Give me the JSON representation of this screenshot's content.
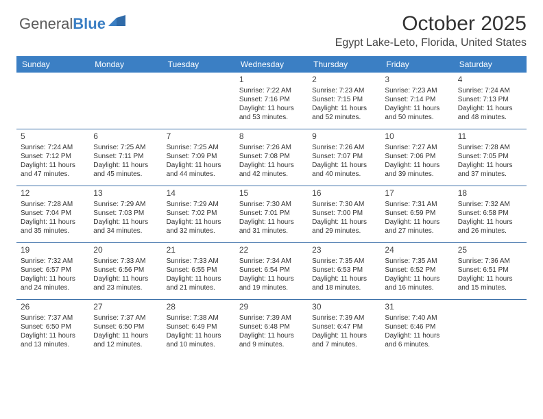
{
  "brand": {
    "name1": "General",
    "name2": "Blue"
  },
  "header": {
    "title": "October 2025",
    "location": "Egypt Lake-Leto, Florida, United States"
  },
  "style": {
    "header_bg": "#3b7fc4",
    "header_fg": "#ffffff",
    "row_border": "#3b6fa8",
    "text_color": "#333333",
    "daynum_color": "#444444",
    "body_font_size": 10,
    "daynum_font_size": 12,
    "title_font_size": 30,
    "location_font_size": 16
  },
  "day_labels": [
    "Sunday",
    "Monday",
    "Tuesday",
    "Wednesday",
    "Thursday",
    "Friday",
    "Saturday"
  ],
  "weeks": [
    [
      {
        "blank": true
      },
      {
        "blank": true
      },
      {
        "blank": true
      },
      {
        "day": "1",
        "sunrise": "7:22 AM",
        "sunset": "7:16 PM",
        "dl1": "11 hours",
        "dl2": "and 53 minutes."
      },
      {
        "day": "2",
        "sunrise": "7:23 AM",
        "sunset": "7:15 PM",
        "dl1": "11 hours",
        "dl2": "and 52 minutes."
      },
      {
        "day": "3",
        "sunrise": "7:23 AM",
        "sunset": "7:14 PM",
        "dl1": "11 hours",
        "dl2": "and 50 minutes."
      },
      {
        "day": "4",
        "sunrise": "7:24 AM",
        "sunset": "7:13 PM",
        "dl1": "11 hours",
        "dl2": "and 48 minutes."
      }
    ],
    [
      {
        "day": "5",
        "sunrise": "7:24 AM",
        "sunset": "7:12 PM",
        "dl1": "11 hours",
        "dl2": "and 47 minutes."
      },
      {
        "day": "6",
        "sunrise": "7:25 AM",
        "sunset": "7:11 PM",
        "dl1": "11 hours",
        "dl2": "and 45 minutes."
      },
      {
        "day": "7",
        "sunrise": "7:25 AM",
        "sunset": "7:09 PM",
        "dl1": "11 hours",
        "dl2": "and 44 minutes."
      },
      {
        "day": "8",
        "sunrise": "7:26 AM",
        "sunset": "7:08 PM",
        "dl1": "11 hours",
        "dl2": "and 42 minutes."
      },
      {
        "day": "9",
        "sunrise": "7:26 AM",
        "sunset": "7:07 PM",
        "dl1": "11 hours",
        "dl2": "and 40 minutes."
      },
      {
        "day": "10",
        "sunrise": "7:27 AM",
        "sunset": "7:06 PM",
        "dl1": "11 hours",
        "dl2": "and 39 minutes."
      },
      {
        "day": "11",
        "sunrise": "7:28 AM",
        "sunset": "7:05 PM",
        "dl1": "11 hours",
        "dl2": "and 37 minutes."
      }
    ],
    [
      {
        "day": "12",
        "sunrise": "7:28 AM",
        "sunset": "7:04 PM",
        "dl1": "11 hours",
        "dl2": "and 35 minutes."
      },
      {
        "day": "13",
        "sunrise": "7:29 AM",
        "sunset": "7:03 PM",
        "dl1": "11 hours",
        "dl2": "and 34 minutes."
      },
      {
        "day": "14",
        "sunrise": "7:29 AM",
        "sunset": "7:02 PM",
        "dl1": "11 hours",
        "dl2": "and 32 minutes."
      },
      {
        "day": "15",
        "sunrise": "7:30 AM",
        "sunset": "7:01 PM",
        "dl1": "11 hours",
        "dl2": "and 31 minutes."
      },
      {
        "day": "16",
        "sunrise": "7:30 AM",
        "sunset": "7:00 PM",
        "dl1": "11 hours",
        "dl2": "and 29 minutes."
      },
      {
        "day": "17",
        "sunrise": "7:31 AM",
        "sunset": "6:59 PM",
        "dl1": "11 hours",
        "dl2": "and 27 minutes."
      },
      {
        "day": "18",
        "sunrise": "7:32 AM",
        "sunset": "6:58 PM",
        "dl1": "11 hours",
        "dl2": "and 26 minutes."
      }
    ],
    [
      {
        "day": "19",
        "sunrise": "7:32 AM",
        "sunset": "6:57 PM",
        "dl1": "11 hours",
        "dl2": "and 24 minutes."
      },
      {
        "day": "20",
        "sunrise": "7:33 AM",
        "sunset": "6:56 PM",
        "dl1": "11 hours",
        "dl2": "and 23 minutes."
      },
      {
        "day": "21",
        "sunrise": "7:33 AM",
        "sunset": "6:55 PM",
        "dl1": "11 hours",
        "dl2": "and 21 minutes."
      },
      {
        "day": "22",
        "sunrise": "7:34 AM",
        "sunset": "6:54 PM",
        "dl1": "11 hours",
        "dl2": "and 19 minutes."
      },
      {
        "day": "23",
        "sunrise": "7:35 AM",
        "sunset": "6:53 PM",
        "dl1": "11 hours",
        "dl2": "and 18 minutes."
      },
      {
        "day": "24",
        "sunrise": "7:35 AM",
        "sunset": "6:52 PM",
        "dl1": "11 hours",
        "dl2": "and 16 minutes."
      },
      {
        "day": "25",
        "sunrise": "7:36 AM",
        "sunset": "6:51 PM",
        "dl1": "11 hours",
        "dl2": "and 15 minutes."
      }
    ],
    [
      {
        "day": "26",
        "sunrise": "7:37 AM",
        "sunset": "6:50 PM",
        "dl1": "11 hours",
        "dl2": "and 13 minutes."
      },
      {
        "day": "27",
        "sunrise": "7:37 AM",
        "sunset": "6:50 PM",
        "dl1": "11 hours",
        "dl2": "and 12 minutes."
      },
      {
        "day": "28",
        "sunrise": "7:38 AM",
        "sunset": "6:49 PM",
        "dl1": "11 hours",
        "dl2": "and 10 minutes."
      },
      {
        "day": "29",
        "sunrise": "7:39 AM",
        "sunset": "6:48 PM",
        "dl1": "11 hours",
        "dl2": "and 9 minutes."
      },
      {
        "day": "30",
        "sunrise": "7:39 AM",
        "sunset": "6:47 PM",
        "dl1": "11 hours",
        "dl2": "and 7 minutes."
      },
      {
        "day": "31",
        "sunrise": "7:40 AM",
        "sunset": "6:46 PM",
        "dl1": "11 hours",
        "dl2": "and 6 minutes."
      },
      {
        "blank": true
      }
    ]
  ],
  "labels": {
    "sunrise_prefix": "Sunrise: ",
    "sunset_prefix": "Sunset: ",
    "daylight_prefix": "Daylight: "
  }
}
